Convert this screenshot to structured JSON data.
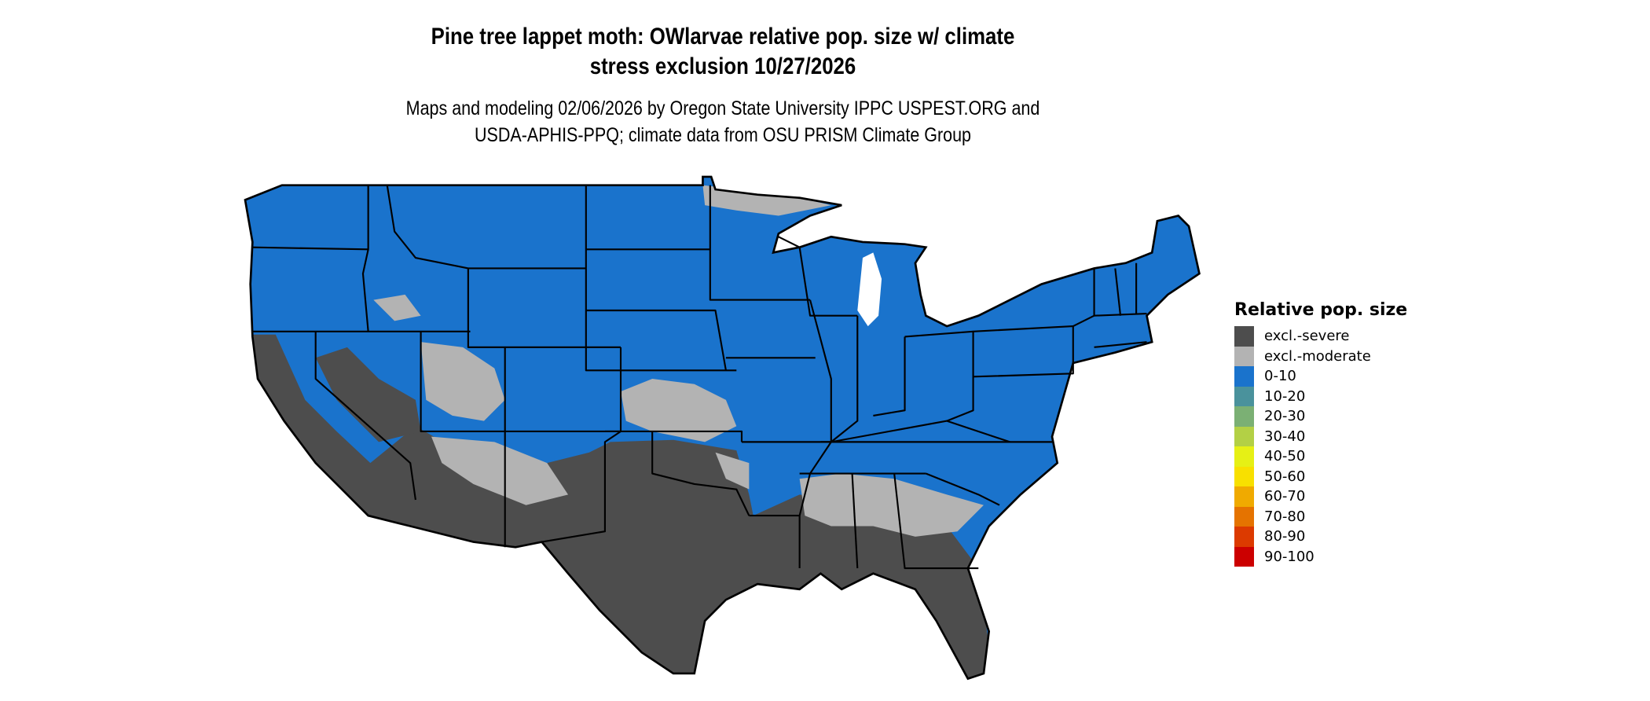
{
  "title": {
    "line1": "Pine tree lappet moth: OWlarvae relative pop. size w/ climate",
    "line2": "stress exclusion 10/27/2026"
  },
  "subtitle": {
    "line1": "Maps and modeling 02/06/2026 by Oregon State University IPPC USPEST.ORG and",
    "line2": "USDA-APHIS-PPQ; climate data from OSU PRISM Climate Group"
  },
  "legend": {
    "title": "Relative pop. size",
    "items": [
      {
        "label": "excl.-severe",
        "color": "#4d4d4d"
      },
      {
        "label": "excl.-moderate",
        "color": "#b3b3b3"
      },
      {
        "label": "0-10",
        "color": "#1a73cc"
      },
      {
        "label": "10-20",
        "color": "#4a929c"
      },
      {
        "label": "20-30",
        "color": "#7bb074"
      },
      {
        "label": "30-40",
        "color": "#b3d045"
      },
      {
        "label": "40-50",
        "color": "#e6f015"
      },
      {
        "label": "50-60",
        "color": "#f8e000"
      },
      {
        "label": "60-70",
        "color": "#f0aa00"
      },
      {
        "label": "70-80",
        "color": "#e57300"
      },
      {
        "label": "80-90",
        "color": "#dc3a00"
      },
      {
        "label": "90-100",
        "color": "#cc0000"
      }
    ]
  },
  "map": {
    "region": "Contiguous United States",
    "dominant_category": "0-10",
    "excluded_severe_areas": [
      "Texas",
      "Louisiana",
      "Florida",
      "southern Arizona",
      "California valleys",
      "southern Nevada",
      "southern Mississippi/Alabama/Georgia"
    ],
    "excluded_moderate_areas": [
      "Oklahoma/Kansas",
      "Utah/Nevada uplands",
      "northern Minnesota",
      "inland Southeast"
    ]
  }
}
